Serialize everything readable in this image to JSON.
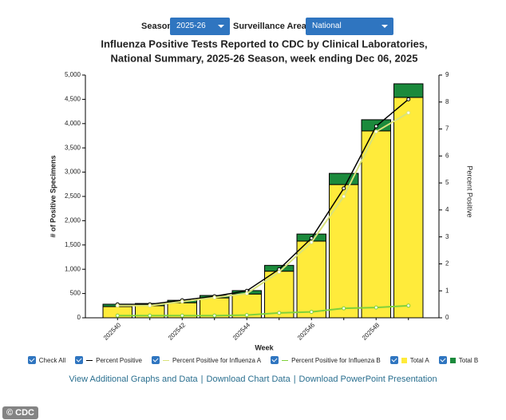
{
  "controls": {
    "season_label": "Season:",
    "season_value": "2025-26",
    "area_label": "Surveillance Area:",
    "area_value": "National"
  },
  "chart_data": {
    "type": "bar",
    "stacked": true,
    "title": "Influenza Positive Tests Reported to CDC by Clinical Laboratories,",
    "subtitle": "National Summary, 2025-26 Season, week ending Dec 06, 2025",
    "x_label": "Week",
    "y_label": "# of Positive Specimens",
    "y2_label": "Percent Positive",
    "categories": [
      "202540",
      null,
      "202542",
      null,
      "202544",
      null,
      "202546",
      null,
      "202548",
      null
    ],
    "series": [
      {
        "name": "Percent Positive",
        "type": "line",
        "axis": "y2",
        "color": "#000000",
        "values": [
          0.5,
          0.5,
          0.65,
          0.8,
          1.0,
          1.8,
          2.95,
          4.8,
          7.1,
          8.1
        ]
      },
      {
        "name": "Percent Positive for Influenza A",
        "type": "line",
        "axis": "y2",
        "color": "#d9e27c",
        "values": [
          0.45,
          0.45,
          0.6,
          0.75,
          0.9,
          1.7,
          2.8,
          4.5,
          6.9,
          7.6
        ]
      },
      {
        "name": "Percent Positive for Influenza B",
        "type": "line",
        "axis": "y2",
        "color": "#7fd13b",
        "values": [
          0.08,
          0.08,
          0.08,
          0.08,
          0.1,
          0.18,
          0.22,
          0.35,
          0.38,
          0.45
        ]
      },
      {
        "name": "Total A",
        "type": "bar",
        "color": "#ffeb3b",
        "values": [
          230,
          250,
          310,
          410,
          490,
          960,
          1580,
          2745,
          3850,
          4540
        ]
      },
      {
        "name": "Total B",
        "type": "bar",
        "color": "#1b8a3c",
        "values": [
          50,
          45,
          50,
          50,
          70,
          120,
          145,
          230,
          230,
          280
        ]
      }
    ],
    "ylim": [
      0,
      5000
    ],
    "yticks": [
      0,
      500,
      {
        "value": 1000,
        "label": "1,000"
      },
      {
        "value": 1500,
        "label": "1,500"
      },
      {
        "value": 2000,
        "label": "2,000"
      },
      {
        "value": 2500,
        "label": "2,500"
      },
      {
        "value": 3000,
        "label": "3,000"
      },
      {
        "value": 3500,
        "label": "3,500"
      },
      {
        "value": 4000,
        "label": "4,000"
      },
      {
        "value": 4500,
        "label": "4,500"
      },
      {
        "value": 5000,
        "label": "5,000"
      }
    ],
    "y2lim": [
      0,
      9
    ],
    "y2ticks": [
      0,
      1,
      2,
      3,
      4,
      5,
      6,
      7,
      8,
      9
    ]
  },
  "legend_check_all": "Check All",
  "links": [
    "View Additional Graphs and Data",
    "Download Chart Data",
    "Download PowerPoint Presentation"
  ],
  "link_separator": "|",
  "watermark": "© CDC"
}
